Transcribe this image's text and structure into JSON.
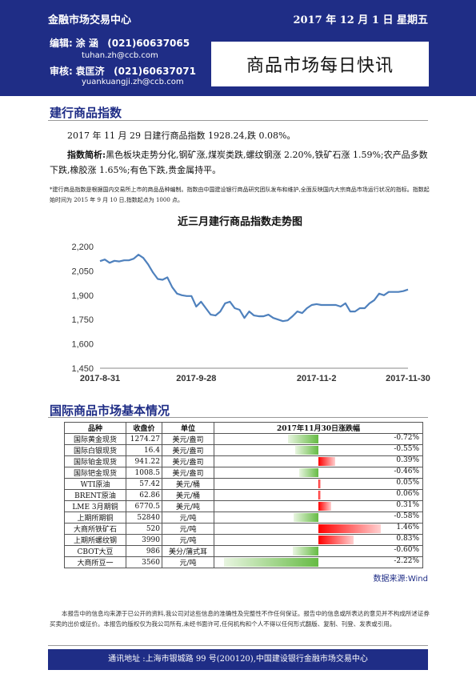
{
  "header": {
    "org": "金融市场交易中心",
    "date": "2017 年 12 月 1 日  星期五",
    "editor_label": "编辑:",
    "editor_name": "涂  涵",
    "editor_phone": "(021)60637065",
    "editor_email": "tuhan.zh@ccb.com",
    "reviewer_label": "审核:",
    "reviewer_name": "袁匡济",
    "reviewer_phone": "(021)60637071",
    "reviewer_email": "yuankuangji.zh@ccb.com",
    "title": "商品市场每日快讯"
  },
  "section1": {
    "title": "建行商品指数",
    "summary": "2017 年 11 月 29 日建行商品指数 1928.24,跌 0.08%。",
    "analysis_label": "指数简析:",
    "analysis_text": "黑色板块走势分化,钢矿涨,煤炭类跌,螺纹钢涨 2.20%,铁矿石涨 1.59%;农产品多数下跌,橡胶涨 1.65%;有色下跌,贵金属持平。",
    "note": "*建行商品指数是根据国内交易所上市的商品品种编制。指数由中国建设银行商品研究团队发布和维护,全面反映国内大宗商品市场运行状况的指标。指数起始时间为 2015 年 9 月 10 日,指数起点为 1000 点。"
  },
  "chart_data": {
    "type": "line",
    "title": "近三月建行商品指数走势图",
    "xlabel": "",
    "ylabel": "",
    "ylim": [
      1450,
      2200
    ],
    "yticks": [
      1450,
      1600,
      1750,
      1900,
      2050,
      2200
    ],
    "ytick_labels": [
      "1,450",
      "1,600",
      "1,750",
      "1,900",
      "2,050",
      "2,200"
    ],
    "xtick_labels": [
      "2017-8-31",
      "2017-9-28",
      "2017-11-2",
      "2017-11-30"
    ],
    "xtick_positions": [
      0,
      20,
      45,
      64
    ],
    "legend": "none",
    "grid": false,
    "color": "#4f81bd",
    "series": [
      {
        "values": [
          2110,
          2120,
          2100,
          2112,
          2108,
          2115,
          2115,
          2125,
          2150,
          2130,
          2090,
          2040,
          2000,
          1995,
          2010,
          1950,
          1910,
          1900,
          1895,
          1895,
          1830,
          1860,
          1820,
          1780,
          1775,
          1800,
          1850,
          1860,
          1820,
          1810,
          1760,
          1800,
          1775,
          1770,
          1770,
          1780,
          1760,
          1750,
          1740,
          1745,
          1770,
          1800,
          1790,
          1820,
          1840,
          1845,
          1840,
          1840,
          1840,
          1840,
          1830,
          1850,
          1800,
          1800,
          1820,
          1820,
          1850,
          1870,
          1910,
          1900,
          1920,
          1920,
          1920,
          1925,
          1935
        ]
      }
    ]
  },
  "section2": {
    "title": "国际商品市场基本情况",
    "headers": [
      "品种",
      "收盘价",
      "单位",
      "2017年11月30日涨跌幅"
    ],
    "rows": [
      {
        "name": "国际黄金现货",
        "price": "1274.27",
        "unit": "美元/盎司",
        "change": -0.72,
        "label": "-0.72%"
      },
      {
        "name": "国际白银现货",
        "price": "16.4",
        "unit": "美元/盎司",
        "change": -0.55,
        "label": "-0.55%"
      },
      {
        "name": "国际铂金现货",
        "price": "941.22",
        "unit": "美元/盎司",
        "change": 0.39,
        "label": "0.39%"
      },
      {
        "name": "国际钯金现货",
        "price": "1008.5",
        "unit": "美元/盎司",
        "change": -0.46,
        "label": "-0.46%"
      },
      {
        "name": "WTI原油",
        "price": "57.42",
        "unit": "美元/桶",
        "change": 0.05,
        "label": "0.05%"
      },
      {
        "name": "BRENT原油",
        "price": "62.86",
        "unit": "美元/桶",
        "change": 0.06,
        "label": "0.06%"
      },
      {
        "name": "LME 3月期铜",
        "price": "6770.5",
        "unit": "美元/吨",
        "change": 0.31,
        "label": "0.31%"
      },
      {
        "name": "上期所期铜",
        "price": "52840",
        "unit": "元/吨",
        "change": -0.58,
        "label": "-0.58%"
      },
      {
        "name": "大商所铁矿石",
        "price": "520",
        "unit": "元/吨",
        "change": 1.46,
        "label": "1.46%"
      },
      {
        "name": "上期所螺纹钢",
        "price": "3990",
        "unit": "元/吨",
        "change": 0.83,
        "label": "0.83%"
      },
      {
        "name": "CBOT大豆",
        "price": "986",
        "unit": "美分/蒲式耳",
        "change": -0.6,
        "label": "-0.60%"
      },
      {
        "name": "大商所豆一",
        "price": "3560",
        "unit": "元/吨",
        "change": -2.22,
        "label": "-2.22%"
      }
    ],
    "source": "数据来源:Wind"
  },
  "disclaimer": "本报告中的信息均来源于已公开的资料,我公司对这些信息的准确性及完整性不作任何保证。报告中的信息或所表达的意见并不构成所述证券买卖的出价或征价。本报告的版权仅为我公司所有,未经书面许可,任何机构和个人不得以任何形式翻版、复制、刊登、发表或引用。",
  "footer": "通讯地址 :上海市银城路 99 号(200120),中国建设银行金融市场交易中心",
  "colors": {
    "brand": "#1f2d86",
    "up": "#ff0000",
    "down": "#66bb44",
    "line": "#4f81bd"
  }
}
